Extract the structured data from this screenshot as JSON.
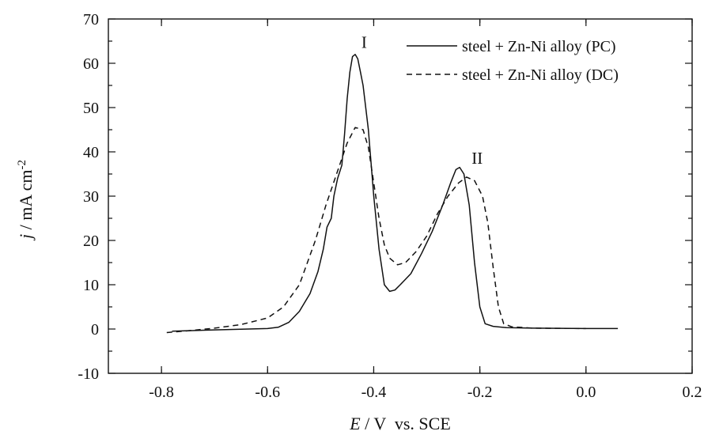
{
  "chart_data": {
    "type": "line",
    "xlabel_italic": "E",
    "xlabel_rest": " / V  vs. SCE",
    "ylabel_italic": "j",
    "ylabel_rest": " / mA cm",
    "ylabel_sup": "-2",
    "xlim": [
      -0.9,
      0.2
    ],
    "ylim": [
      -10,
      70
    ],
    "x_ticks": [
      {
        "value": -0.8,
        "label": "-0.8"
      },
      {
        "value": -0.6,
        "label": "-0.6"
      },
      {
        "value": -0.4,
        "label": "-0.4"
      },
      {
        "value": -0.2,
        "label": "-0.2"
      },
      {
        "value": 0.0,
        "label": "0.0"
      },
      {
        "value": 0.2,
        "label": "0.2"
      }
    ],
    "y_ticks": [
      {
        "value": -10,
        "label": "-10"
      },
      {
        "value": 0,
        "label": "0"
      },
      {
        "value": 10,
        "label": "10"
      },
      {
        "value": 20,
        "label": "20"
      },
      {
        "value": 30,
        "label": "30"
      },
      {
        "value": 40,
        "label": "40"
      },
      {
        "value": 50,
        "label": "50"
      },
      {
        "value": 60,
        "label": "60"
      },
      {
        "value": 70,
        "label": "70"
      }
    ],
    "legend_position": "top-right",
    "grid": false,
    "series": [
      {
        "name": "steel + Zn-Ni alloy (PC)",
        "line_style": "solid",
        "color": "#111111",
        "points": [
          [
            -0.78,
            -0.5
          ],
          [
            -0.7,
            -0.2
          ],
          [
            -0.6,
            0.1
          ],
          [
            -0.58,
            0.4
          ],
          [
            -0.56,
            1.5
          ],
          [
            -0.54,
            4.0
          ],
          [
            -0.52,
            8.0
          ],
          [
            -0.505,
            13.0
          ],
          [
            -0.495,
            18.0
          ],
          [
            -0.488,
            23.0
          ],
          [
            -0.48,
            25.0
          ],
          [
            -0.475,
            30.0
          ],
          [
            -0.468,
            34.0
          ],
          [
            -0.46,
            37.0
          ],
          [
            -0.455,
            44.0
          ],
          [
            -0.45,
            52.0
          ],
          [
            -0.445,
            58.0
          ],
          [
            -0.44,
            61.5
          ],
          [
            -0.435,
            62.0
          ],
          [
            -0.43,
            61.0
          ],
          [
            -0.425,
            58.0
          ],
          [
            -0.42,
            55.0
          ],
          [
            -0.41,
            45.0
          ],
          [
            -0.4,
            30.0
          ],
          [
            -0.39,
            18.0
          ],
          [
            -0.38,
            10.0
          ],
          [
            -0.37,
            8.5
          ],
          [
            -0.36,
            8.8
          ],
          [
            -0.35,
            10.0
          ],
          [
            -0.33,
            12.5
          ],
          [
            -0.31,
            17.0
          ],
          [
            -0.29,
            22.0
          ],
          [
            -0.27,
            28.0
          ],
          [
            -0.255,
            33.0
          ],
          [
            -0.245,
            36.0
          ],
          [
            -0.238,
            36.5
          ],
          [
            -0.23,
            35.0
          ],
          [
            -0.22,
            28.0
          ],
          [
            -0.21,
            15.0
          ],
          [
            -0.2,
            5.0
          ],
          [
            -0.19,
            1.2
          ],
          [
            -0.175,
            0.6
          ],
          [
            -0.15,
            0.3
          ],
          [
            -0.1,
            0.2
          ],
          [
            0.0,
            0.1
          ],
          [
            0.06,
            0.1
          ]
        ]
      },
      {
        "name": "steel + Zn-Ni alloy (DC)",
        "line_style": "dashed",
        "color": "#111111",
        "points": [
          [
            -0.79,
            -0.8
          ],
          [
            -0.75,
            -0.4
          ],
          [
            -0.7,
            0.2
          ],
          [
            -0.65,
            1.0
          ],
          [
            -0.6,
            2.5
          ],
          [
            -0.57,
            5.0
          ],
          [
            -0.54,
            10.0
          ],
          [
            -0.51,
            20.0
          ],
          [
            -0.49,
            28.0
          ],
          [
            -0.47,
            35.0
          ],
          [
            -0.45,
            42.0
          ],
          [
            -0.435,
            45.5
          ],
          [
            -0.42,
            45.0
          ],
          [
            -0.41,
            41.0
          ],
          [
            -0.4,
            33.0
          ],
          [
            -0.39,
            25.0
          ],
          [
            -0.38,
            19.0
          ],
          [
            -0.37,
            16.0
          ],
          [
            -0.355,
            14.5
          ],
          [
            -0.34,
            15.0
          ],
          [
            -0.32,
            17.5
          ],
          [
            -0.3,
            21.0
          ],
          [
            -0.28,
            26.0
          ],
          [
            -0.26,
            30.0
          ],
          [
            -0.24,
            33.0
          ],
          [
            -0.225,
            34.3
          ],
          [
            -0.21,
            33.5
          ],
          [
            -0.195,
            30.0
          ],
          [
            -0.185,
            24.0
          ],
          [
            -0.175,
            14.0
          ],
          [
            -0.165,
            5.0
          ],
          [
            -0.155,
            1.2
          ],
          [
            -0.14,
            0.5
          ],
          [
            -0.1,
            0.2
          ],
          [
            0.0,
            0.1
          ]
        ]
      }
    ],
    "annotations": [
      {
        "text": "I",
        "x": -0.418,
        "y": 63.5
      },
      {
        "text": "II",
        "x": -0.205,
        "y": 37.3
      }
    ]
  }
}
